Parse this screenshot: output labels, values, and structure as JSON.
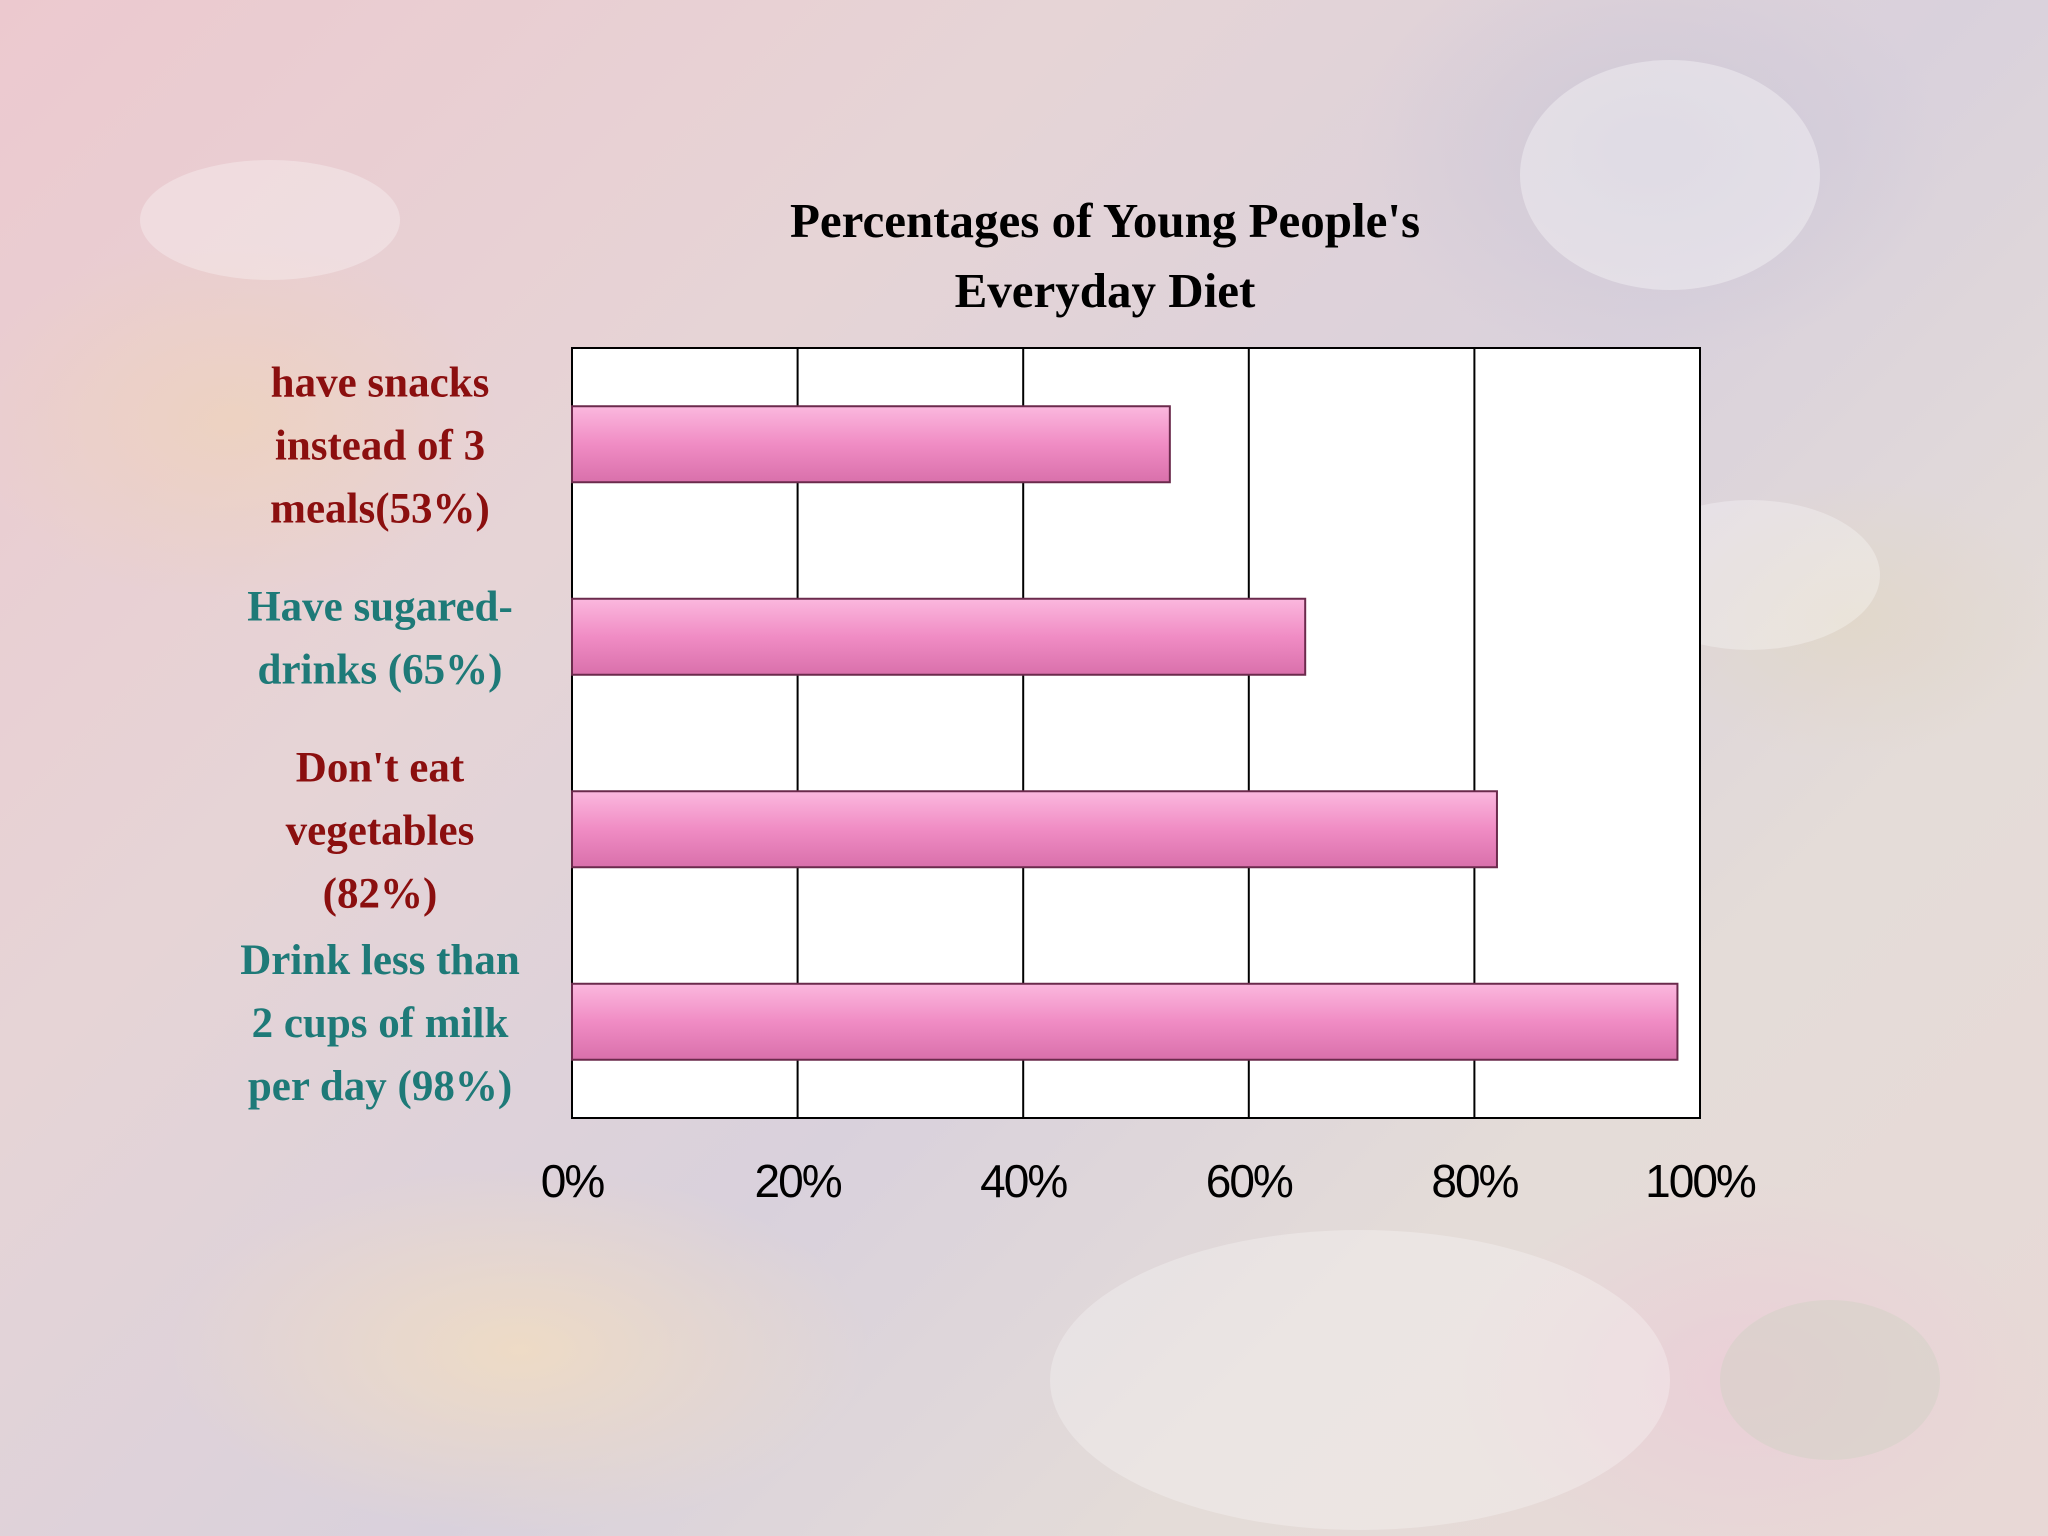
{
  "chart_data": {
    "type": "bar",
    "orientation": "horizontal",
    "title": "Percentages of Young People's Everyday Diet",
    "title_lines": [
      "Percentages of Young People's",
      "Everyday Diet"
    ],
    "categories": [
      "have snacks instead of 3 meals(53%)",
      "Have sugared-drinks (65%)",
      "Don't eat vegetables (82%)",
      "Drink less than 2 cups of milk per day (98%)"
    ],
    "category_label_lines": [
      [
        "have snacks",
        "instead of 3",
        "meals(53%)"
      ],
      [
        "Have sugared-",
        "drinks (65%)"
      ],
      [
        "Don't eat",
        "vegetables",
        "(82%)"
      ],
      [
        "Drink less than",
        "2 cups of milk",
        "per day (98%)"
      ]
    ],
    "category_colors": [
      "#8b0f0f",
      "#1e7a78",
      "#8b0f0f",
      "#1e7a78"
    ],
    "values": [
      53,
      65,
      82,
      98
    ],
    "xlim": [
      0,
      100
    ],
    "xticks": [
      "0%",
      "20%",
      "40%",
      "60%",
      "80%",
      "100%"
    ],
    "grid": true,
    "legend": "none",
    "bar_color": "#f08cc4",
    "bar_edge_color": "#6b2a4c"
  }
}
